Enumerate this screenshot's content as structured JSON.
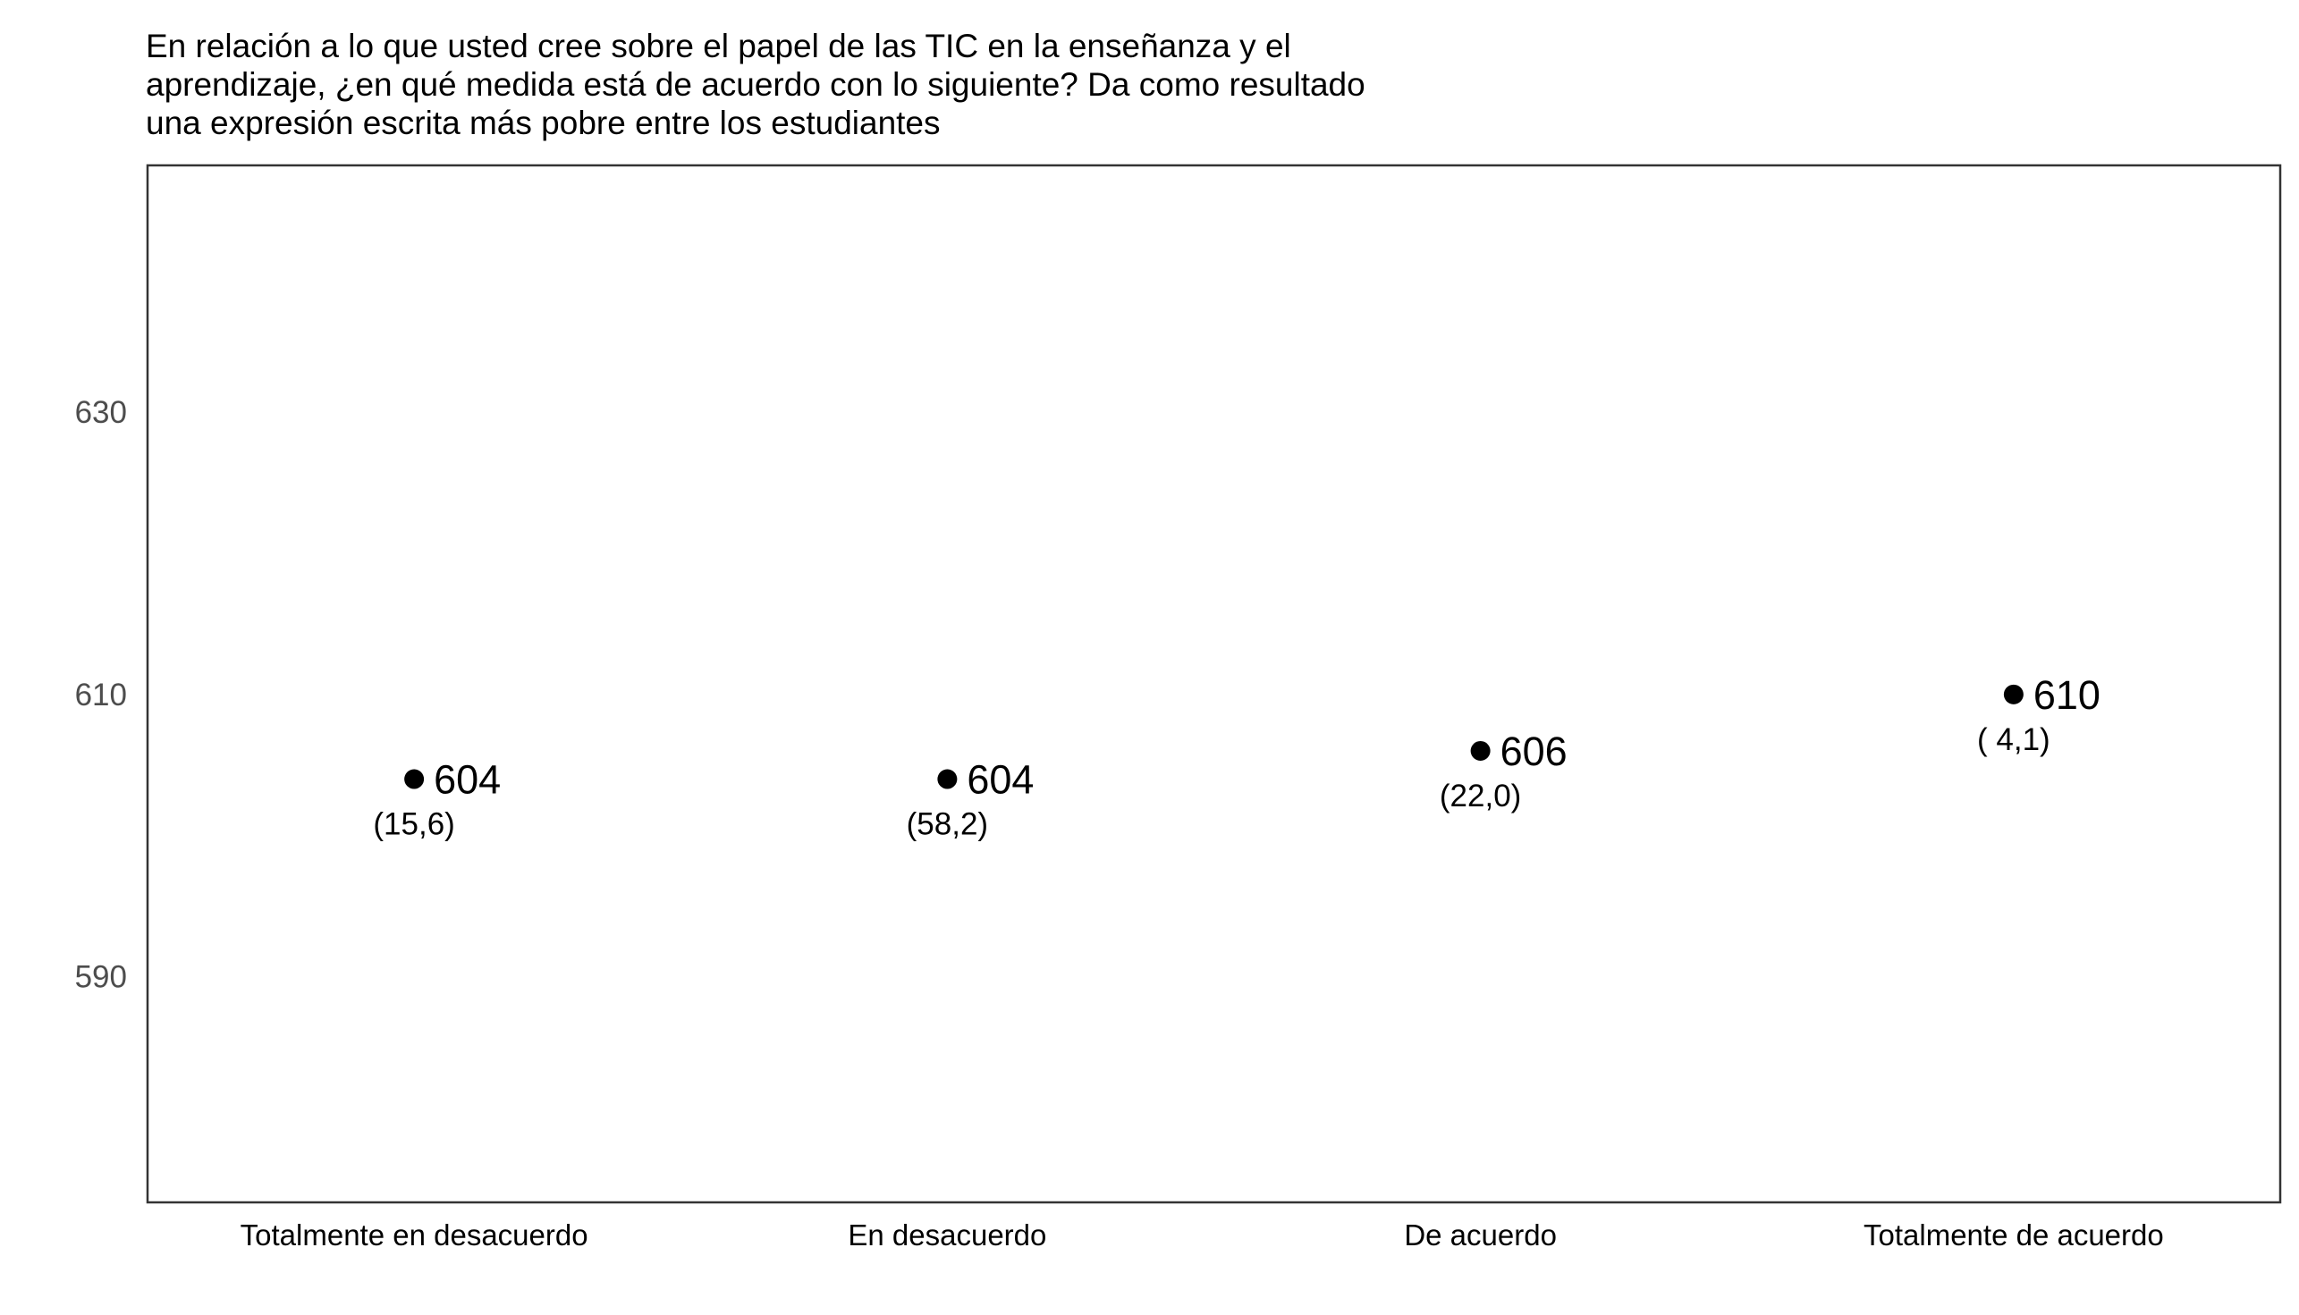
{
  "chart_data": {
    "type": "scatter",
    "title_lines": [
      "En relación a lo que usted cree sobre el papel de las TIC en la enseñanza y el",
      "aprendizaje, ¿en qué medida está de acuerdo con lo siguiente? Da como resultado",
      "una expresión escrita más pobre entre los estudiantes"
    ],
    "categories": [
      "Totalmente en desacuerdo",
      "En desacuerdo",
      "De acuerdo",
      "Totalmente de acuerdo"
    ],
    "values": [
      604,
      604,
      606,
      610
    ],
    "value_labels": [
      "604",
      "604",
      "606",
      "610"
    ],
    "se_labels": [
      "(15,6)",
      "(58,2)",
      "(22,0)",
      "( 4,1)"
    ],
    "xlabel": "",
    "ylabel": "",
    "ylim": [
      574,
      647.5
    ],
    "yticks": [
      590,
      610,
      630
    ],
    "ytick_labels": [
      "590",
      "610",
      "630"
    ],
    "grid": false,
    "legend": "none",
    "colors": {
      "point": "#000000",
      "frame": "#333333",
      "ytick_text": "#4d4d4d"
    }
  }
}
